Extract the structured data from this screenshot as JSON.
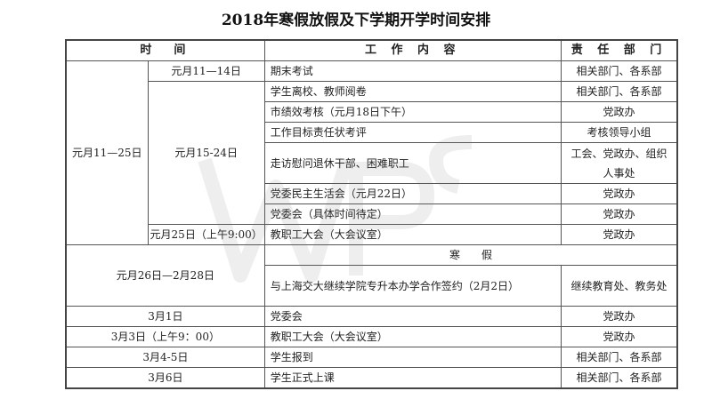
{
  "title": "2018年寒假放假及下学期开学时间安排",
  "header": {
    "time": "时　间",
    "content": "工 作 内 容",
    "dept": "责 任 部 门"
  },
  "group1": {
    "outer_time": "元月11—25日",
    "rows": [
      {
        "time": "元月11—14日",
        "content": "期末考试",
        "dept": "相关部门、各系部"
      },
      {
        "time": "元月15-24日",
        "content": "学生离校、教师阅卷",
        "dept": "相关部门、各系部"
      },
      {
        "content": "市绩效考核（元月18日下午）",
        "dept": "党政办"
      },
      {
        "content": "工作目标责任状考评",
        "dept": "考核领导小组"
      },
      {
        "content": "走访慰问退休干部、困难职工",
        "dept": "工会、党政办、组织人事处"
      },
      {
        "content": "党委民主生活会（元月22日）",
        "dept": "党政办"
      },
      {
        "content": "党委会（具体时间待定）",
        "dept": "党政办"
      },
      {
        "time": "元月25日（上午9:00）",
        "content": "教职工大会（大会议室）",
        "dept": "党政办"
      }
    ]
  },
  "group2": {
    "time": "元月26日—2月28日",
    "holiday": "寒　　假",
    "content": "与上海交大继续学院专升本办学合作签约（2月2日）",
    "dept": "继续教育处、教务处"
  },
  "rows_after": [
    {
      "time": "3月1日",
      "content": "党委会",
      "dept": "党政办"
    },
    {
      "time": "3月3日（上午9：00）",
      "content": "教职工大会（大会议室）",
      "dept": "党政办"
    },
    {
      "time": "3月4-5日",
      "content": "学生报到",
      "dept": "相关部门、各系部"
    },
    {
      "time": "3月6日",
      "content": "学生正式上课",
      "dept": "相关部门、各系部"
    }
  ],
  "watermark": "WPS"
}
